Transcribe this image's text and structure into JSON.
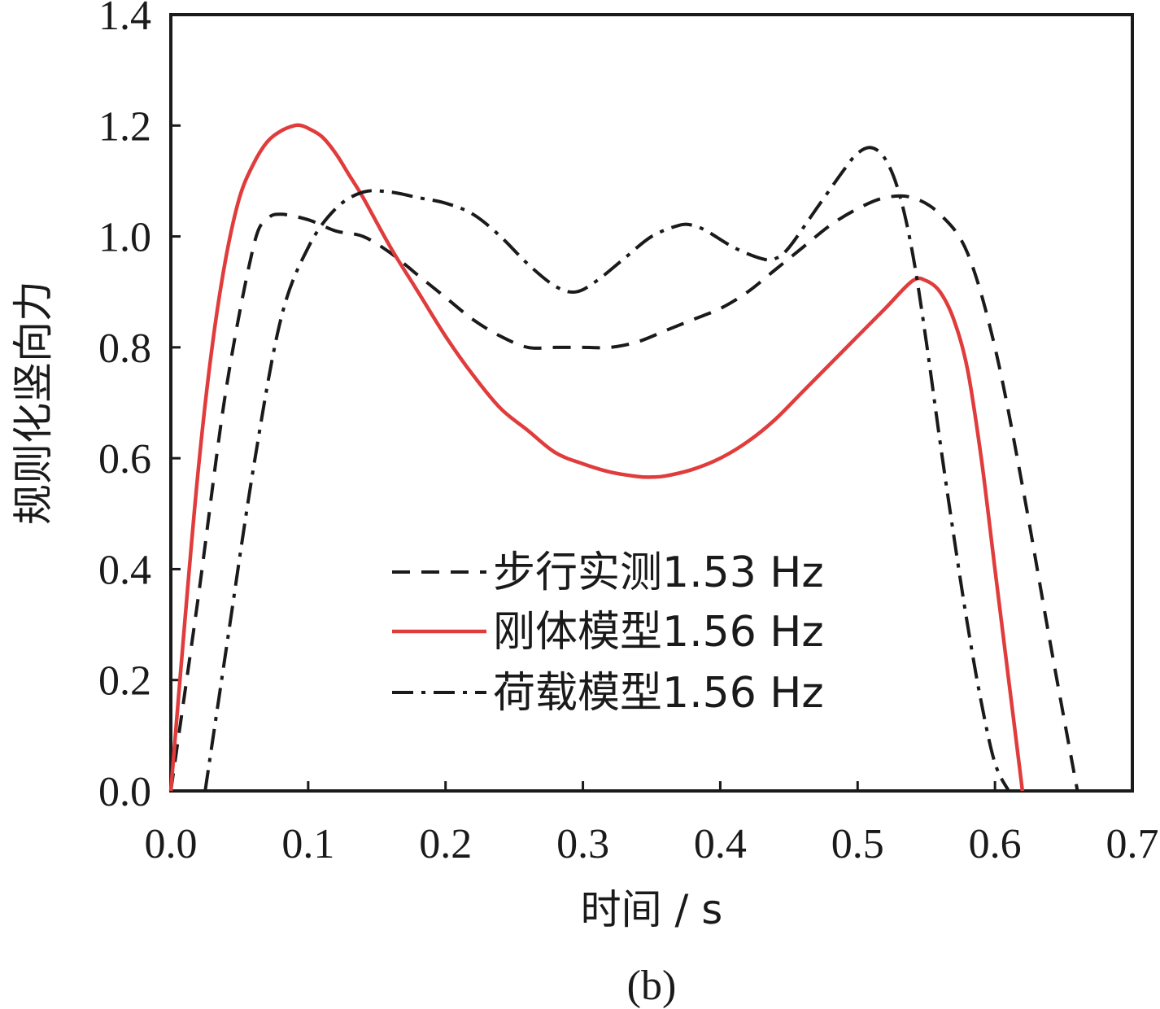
{
  "chart_data": {
    "type": "line",
    "title": "",
    "caption": "(b)",
    "xlabel": "时间 / s",
    "ylabel": "规则化竖向力",
    "xlim": [
      0.0,
      0.7
    ],
    "ylim": [
      0.0,
      1.4
    ],
    "xticks": [
      "0.0",
      "0.1",
      "0.2",
      "0.3",
      "0.4",
      "0.5",
      "0.6",
      "0.7"
    ],
    "yticks": [
      "0.0",
      "0.2",
      "0.4",
      "0.6",
      "0.8",
      "1.0",
      "1.2",
      "1.4"
    ],
    "grid": false,
    "legend_position": "lower-center",
    "series": [
      {
        "name": "步行实测1.53 Hz",
        "color": "#1a1a1a",
        "style": "dashed",
        "x": [
          0.0,
          0.02,
          0.04,
          0.06,
          0.07,
          0.08,
          0.1,
          0.12,
          0.14,
          0.16,
          0.18,
          0.2,
          0.22,
          0.24,
          0.26,
          0.28,
          0.3,
          0.32,
          0.34,
          0.36,
          0.38,
          0.4,
          0.42,
          0.44,
          0.46,
          0.48,
          0.5,
          0.52,
          0.54,
          0.56,
          0.58,
          0.6,
          0.62,
          0.64,
          0.66
        ],
        "y": [
          0.0,
          0.35,
          0.72,
          0.98,
          1.03,
          1.04,
          1.03,
          1.01,
          1.0,
          0.97,
          0.93,
          0.89,
          0.85,
          0.82,
          0.8,
          0.8,
          0.8,
          0.8,
          0.81,
          0.83,
          0.85,
          0.87,
          0.9,
          0.94,
          0.98,
          1.02,
          1.05,
          1.07,
          1.07,
          1.04,
          0.97,
          0.8,
          0.55,
          0.27,
          0.0
        ]
      },
      {
        "name": "刚体模型1.56 Hz",
        "color": "#e03c3c",
        "style": "solid",
        "x": [
          0.0,
          0.01,
          0.02,
          0.03,
          0.04,
          0.05,
          0.06,
          0.07,
          0.08,
          0.09,
          0.095,
          0.1,
          0.11,
          0.12,
          0.13,
          0.14,
          0.16,
          0.18,
          0.2,
          0.22,
          0.24,
          0.26,
          0.28,
          0.3,
          0.32,
          0.34,
          0.35,
          0.36,
          0.38,
          0.4,
          0.42,
          0.44,
          0.46,
          0.48,
          0.5,
          0.52,
          0.54,
          0.55,
          0.56,
          0.57,
          0.58,
          0.59,
          0.6,
          0.61,
          0.62
        ],
        "y": [
          0.0,
          0.3,
          0.58,
          0.8,
          0.96,
          1.07,
          1.13,
          1.17,
          1.19,
          1.2,
          1.2,
          1.195,
          1.18,
          1.15,
          1.11,
          1.07,
          0.98,
          0.9,
          0.82,
          0.75,
          0.69,
          0.65,
          0.61,
          0.59,
          0.575,
          0.567,
          0.566,
          0.568,
          0.58,
          0.6,
          0.63,
          0.67,
          0.72,
          0.77,
          0.82,
          0.87,
          0.92,
          0.92,
          0.9,
          0.85,
          0.76,
          0.6,
          0.4,
          0.2,
          0.0
        ]
      },
      {
        "name": "荷载模型1.56 Hz",
        "color": "#1a1a1a",
        "style": "dashdot",
        "x": [
          0.025,
          0.04,
          0.06,
          0.08,
          0.1,
          0.12,
          0.14,
          0.16,
          0.18,
          0.2,
          0.22,
          0.24,
          0.26,
          0.28,
          0.295,
          0.31,
          0.33,
          0.35,
          0.37,
          0.38,
          0.39,
          0.41,
          0.43,
          0.44,
          0.45,
          0.47,
          0.49,
          0.5,
          0.51,
          0.52,
          0.53,
          0.54,
          0.55,
          0.56,
          0.57,
          0.58,
          0.59,
          0.6,
          0.61
        ],
        "y": [
          0.0,
          0.25,
          0.58,
          0.85,
          0.98,
          1.05,
          1.08,
          1.08,
          1.07,
          1.06,
          1.04,
          1.0,
          0.95,
          0.91,
          0.9,
          0.92,
          0.96,
          1.0,
          1.02,
          1.02,
          1.01,
          0.98,
          0.96,
          0.96,
          0.98,
          1.05,
          1.12,
          1.15,
          1.16,
          1.14,
          1.08,
          0.97,
          0.81,
          0.63,
          0.46,
          0.3,
          0.16,
          0.05,
          0.0
        ]
      }
    ]
  }
}
